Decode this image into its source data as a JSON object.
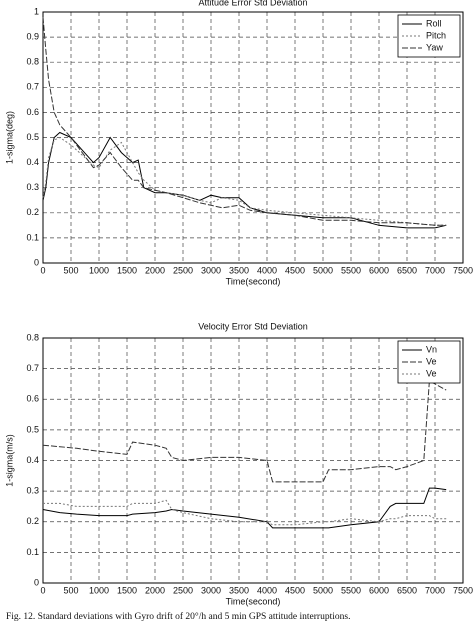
{
  "chart_data": [
    {
      "type": "line",
      "title": "Attitude Error Std Deviation",
      "x_label": "Time(second)",
      "y_label": "1-sigma(deg)",
      "x": [
        0,
        50,
        100,
        200,
        300,
        500,
        700,
        900,
        1000,
        1200,
        1400,
        1600,
        1700,
        1800,
        2000,
        2200,
        2500,
        2800,
        3000,
        3200,
        3500,
        3700,
        4000,
        4500,
        5000,
        5500,
        6000,
        6500,
        7000,
        7200
      ],
      "series": [
        {
          "name": "Roll",
          "color": "#000000",
          "dash": "none",
          "values": [
            0.25,
            0.3,
            0.4,
            0.5,
            0.52,
            0.5,
            0.45,
            0.4,
            0.42,
            0.5,
            0.44,
            0.4,
            0.41,
            0.3,
            0.28,
            0.28,
            0.27,
            0.25,
            0.27,
            0.26,
            0.26,
            0.22,
            0.2,
            0.19,
            0.18,
            0.18,
            0.15,
            0.14,
            0.14,
            0.15
          ]
        },
        {
          "name": "Pitch",
          "color": "#777777",
          "dash": "2,2",
          "values": [
            0.26,
            0.32,
            0.42,
            0.49,
            0.5,
            0.47,
            0.43,
            0.39,
            0.38,
            0.45,
            0.48,
            0.4,
            0.36,
            0.33,
            0.29,
            0.28,
            0.27,
            0.25,
            0.24,
            0.26,
            0.25,
            0.22,
            0.21,
            0.2,
            0.19,
            0.18,
            0.17,
            0.16,
            0.15,
            0.15
          ]
        },
        {
          "name": "Yaw",
          "color": "#333333",
          "dash": "6,2",
          "values": [
            0.98,
            0.85,
            0.73,
            0.6,
            0.55,
            0.5,
            0.44,
            0.38,
            0.39,
            0.44,
            0.38,
            0.33,
            0.33,
            0.3,
            0.29,
            0.28,
            0.26,
            0.24,
            0.23,
            0.22,
            0.23,
            0.21,
            0.2,
            0.19,
            0.17,
            0.17,
            0.16,
            0.16,
            0.15,
            0.15
          ]
        }
      ],
      "xlim": [
        0,
        7500
      ],
      "xticks": [
        0,
        500,
        1000,
        1500,
        2000,
        2500,
        3000,
        3500,
        4000,
        4500,
        5000,
        5500,
        6000,
        6500,
        7000,
        7500
      ],
      "ylim": [
        0,
        1
      ],
      "yticks": [
        0,
        0.1,
        0.2,
        0.3,
        0.4,
        0.5,
        0.6,
        0.7,
        0.8,
        0.9,
        1
      ],
      "grid": true,
      "legend": "upper right"
    },
    {
      "type": "line",
      "title": "Velocity Error Std Deviation",
      "x_label": "Time(second)",
      "y_label": "1-sigma(m/s)",
      "x": [
        0,
        300,
        600,
        1000,
        1500,
        1600,
        2000,
        2200,
        2300,
        2500,
        3000,
        3500,
        4000,
        4100,
        4500,
        5000,
        5100,
        5500,
        6000,
        6200,
        6300,
        6500,
        6800,
        6900,
        7000,
        7200
      ],
      "series": [
        {
          "name": "Vn",
          "color": "#000000",
          "dash": "none",
          "values": [
            0.24,
            0.23,
            0.225,
            0.22,
            0.22,
            0.225,
            0.23,
            0.235,
            0.24,
            0.235,
            0.225,
            0.215,
            0.2,
            0.18,
            0.18,
            0.18,
            0.18,
            0.19,
            0.2,
            0.25,
            0.26,
            0.26,
            0.26,
            0.31,
            0.31,
            0.305
          ]
        },
        {
          "name": "Ve",
          "color": "#333333",
          "dash": "6,2",
          "values": [
            0.45,
            0.445,
            0.44,
            0.43,
            0.42,
            0.46,
            0.45,
            0.44,
            0.41,
            0.4,
            0.41,
            0.41,
            0.4,
            0.33,
            0.33,
            0.33,
            0.37,
            0.37,
            0.38,
            0.38,
            0.37,
            0.38,
            0.4,
            0.66,
            0.65,
            0.63
          ]
        },
        {
          "name": "Ve",
          "color": "#777777",
          "dash": "2,2",
          "values": [
            0.26,
            0.26,
            0.25,
            0.25,
            0.25,
            0.26,
            0.26,
            0.27,
            0.24,
            0.23,
            0.21,
            0.2,
            0.2,
            0.19,
            0.19,
            0.2,
            0.2,
            0.21,
            0.2,
            0.21,
            0.21,
            0.22,
            0.22,
            0.22,
            0.21,
            0.21
          ]
        }
      ],
      "xlim": [
        0,
        7500
      ],
      "xticks": [
        0,
        500,
        1000,
        1500,
        2000,
        2500,
        3000,
        3500,
        4000,
        4500,
        5000,
        5500,
        6000,
        6500,
        7000,
        7500
      ],
      "ylim": [
        0,
        0.8
      ],
      "yticks": [
        0,
        0.1,
        0.2,
        0.3,
        0.4,
        0.5,
        0.6,
        0.7,
        0.8
      ],
      "grid": true,
      "legend": "upper right"
    }
  ],
  "caption": "Fig. 12.   Standard deviations with Gyro drift of 20°/h and 5 min GPS attitude interruptions."
}
